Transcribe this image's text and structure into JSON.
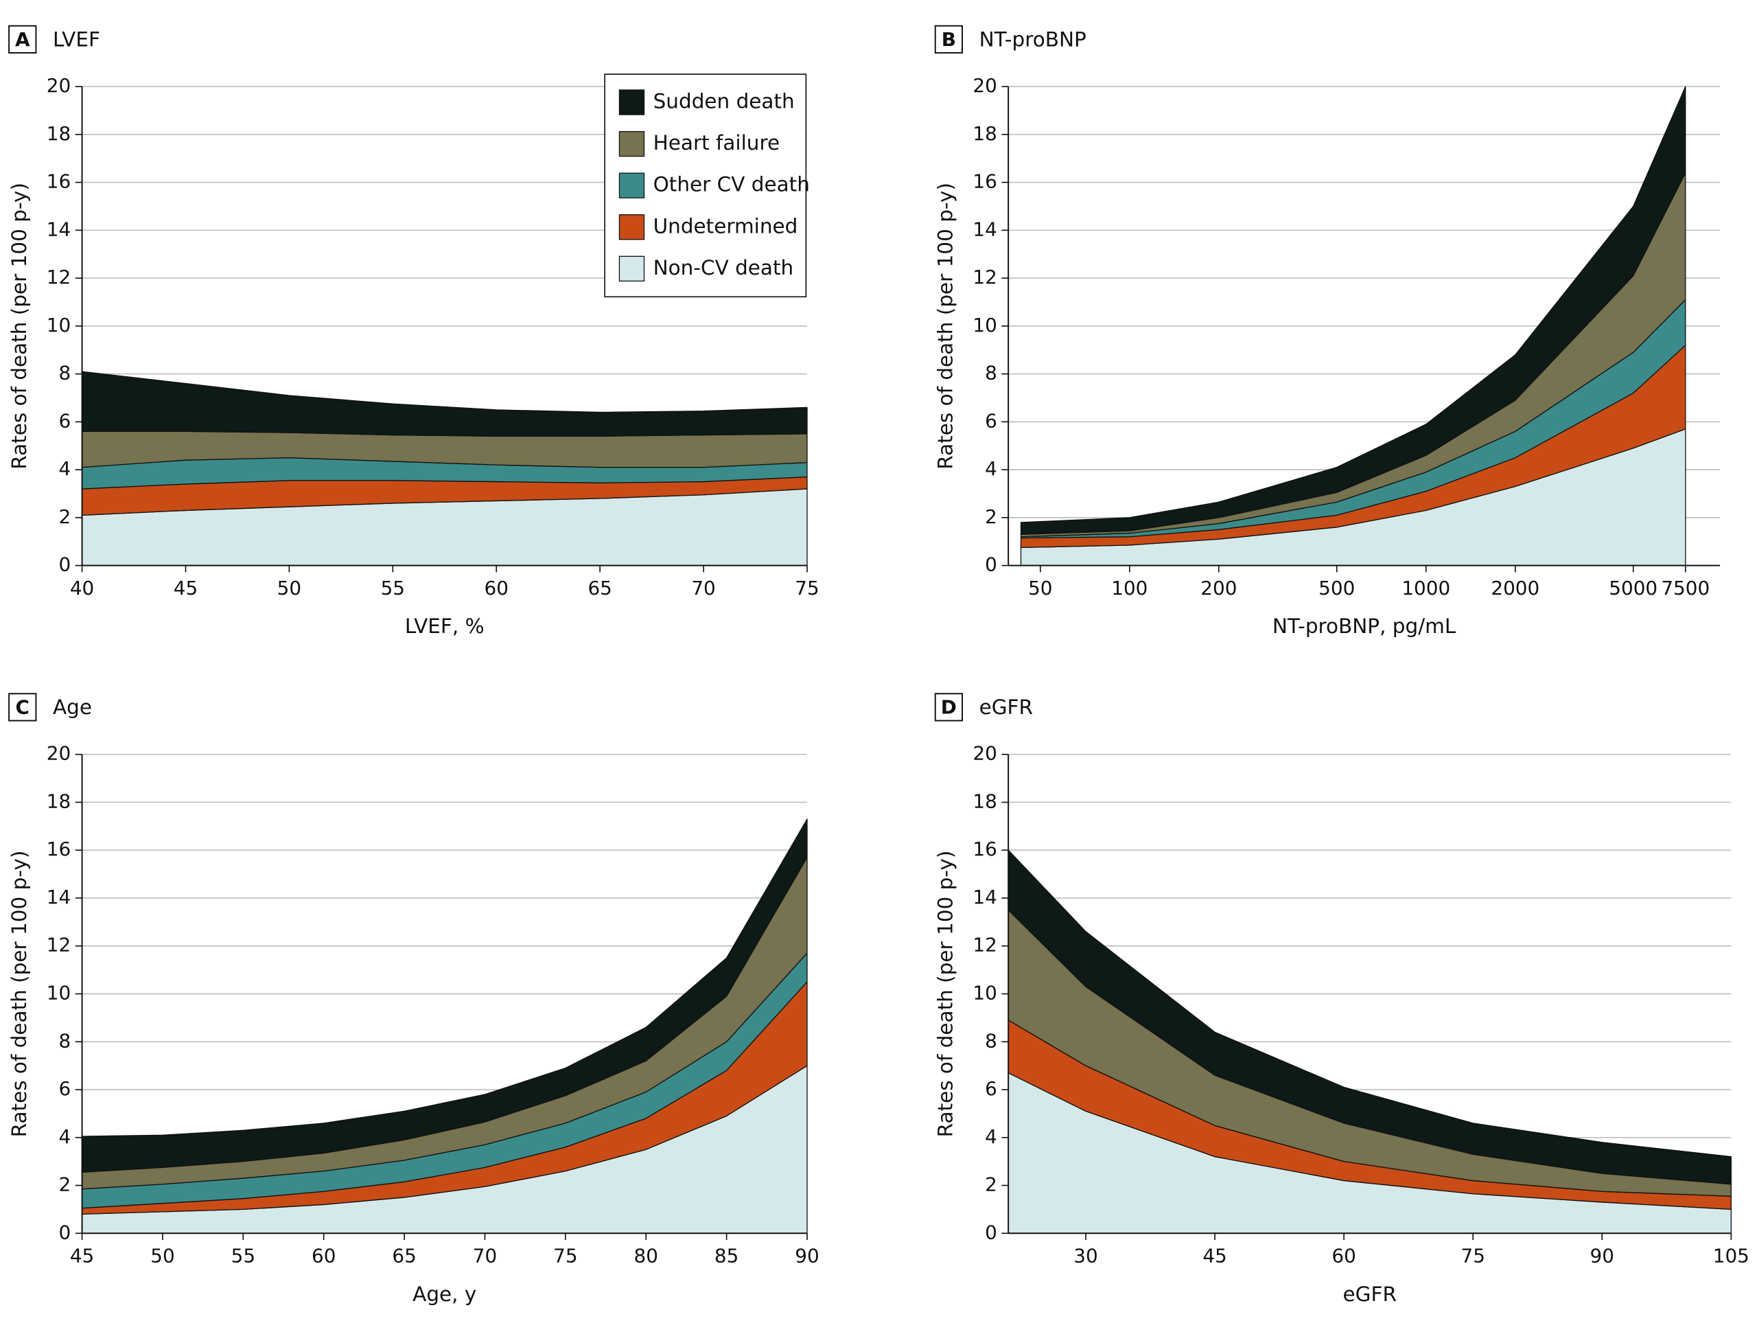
{
  "chart_data": [
    {
      "type": "area",
      "label": "A",
      "title": "LVEF",
      "xlabel": "LVEF, %",
      "ylabel": "Rates of death (per 100 p-y)",
      "x": [
        40,
        45,
        50,
        55,
        60,
        65,
        70,
        75
      ],
      "xlim": [
        40,
        75
      ],
      "xticks": [
        40,
        45,
        50,
        55,
        60,
        65,
        70,
        75
      ],
      "ylim": [
        0,
        20
      ],
      "yticks": [
        0,
        2,
        4,
        6,
        8,
        10,
        12,
        14,
        16,
        18,
        20
      ],
      "grid": true,
      "legend": "top-right",
      "series": [
        {
          "name": "Non-CV death",
          "color": "#d6e9ea",
          "values": [
            2.1,
            2.3,
            2.45,
            2.6,
            2.7,
            2.8,
            2.95,
            3.2
          ]
        },
        {
          "name": "Undetermined",
          "color": "#c94c16",
          "values": [
            1.1,
            1.1,
            1.1,
            0.95,
            0.8,
            0.65,
            0.55,
            0.5
          ]
        },
        {
          "name": "Other CV death",
          "color": "#3b8b8b",
          "values": [
            0.9,
            1.0,
            0.95,
            0.8,
            0.7,
            0.65,
            0.6,
            0.6
          ]
        },
        {
          "name": "Heart failure",
          "color": "#77724f",
          "values": [
            1.5,
            1.2,
            1.05,
            1.1,
            1.2,
            1.3,
            1.35,
            1.2
          ]
        },
        {
          "name": "Sudden death",
          "color": "#0d1a18",
          "values": [
            2.5,
            2.0,
            1.55,
            1.3,
            1.1,
            1.0,
            1.0,
            1.1
          ]
        }
      ]
    },
    {
      "type": "area",
      "label": "B",
      "title": "NT-proBNP",
      "xlabel": "NT-proBNP, pg/mL",
      "ylabel": "Rates of death (per 100 p-y)",
      "x": [
        43,
        100,
        200,
        500,
        1000,
        2000,
        5000,
        7500
      ],
      "xlim": [
        39,
        9800
      ],
      "xscale": "log",
      "xticks": [
        50,
        100,
        200,
        500,
        1000,
        2000,
        5000,
        7500
      ],
      "ylim": [
        0,
        20
      ],
      "yticks": [
        0,
        2,
        4,
        6,
        8,
        10,
        12,
        14,
        16,
        18,
        20
      ],
      "grid": true,
      "series": [
        {
          "name": "Non-CV death",
          "color": "#d6e9ea",
          "values": [
            0.75,
            0.85,
            1.1,
            1.6,
            2.3,
            3.3,
            4.9,
            5.7
          ]
        },
        {
          "name": "Undetermined",
          "color": "#c94c16",
          "values": [
            0.4,
            0.35,
            0.4,
            0.5,
            0.8,
            1.2,
            2.3,
            3.5
          ]
        },
        {
          "name": "Other CV death",
          "color": "#3b8b8b",
          "values": [
            0.05,
            0.15,
            0.25,
            0.55,
            0.8,
            1.1,
            1.7,
            1.9
          ]
        },
        {
          "name": "Heart failure",
          "color": "#77724f",
          "values": [
            0.1,
            0.1,
            0.25,
            0.4,
            0.7,
            1.3,
            3.2,
            5.3
          ]
        },
        {
          "name": "Sudden death",
          "color": "#0d1a18",
          "values": [
            0.5,
            0.55,
            0.65,
            1.05,
            1.3,
            1.9,
            2.9,
            3.6
          ]
        }
      ]
    },
    {
      "type": "area",
      "label": "C",
      "title": "Age",
      "xlabel": "Age, y",
      "ylabel": "Rates of death (per 100 p-y)",
      "x": [
        45,
        50,
        55,
        60,
        65,
        70,
        75,
        80,
        85,
        90
      ],
      "xlim": [
        45,
        90
      ],
      "xticks": [
        45,
        50,
        55,
        60,
        65,
        70,
        75,
        80,
        85,
        90
      ],
      "ylim": [
        0,
        20
      ],
      "yticks": [
        0,
        2,
        4,
        6,
        8,
        10,
        12,
        14,
        16,
        18,
        20
      ],
      "grid": true,
      "series": [
        {
          "name": "Non-CV death",
          "color": "#d6e9ea",
          "values": [
            0.8,
            0.9,
            1.0,
            1.2,
            1.5,
            1.95,
            2.6,
            3.5,
            4.9,
            7.0
          ]
        },
        {
          "name": "Undetermined",
          "color": "#c94c16",
          "values": [
            0.25,
            0.35,
            0.45,
            0.55,
            0.65,
            0.8,
            1.0,
            1.3,
            1.9,
            3.5
          ]
        },
        {
          "name": "Other CV death",
          "color": "#3b8b8b",
          "values": [
            0.8,
            0.8,
            0.85,
            0.85,
            0.9,
            0.95,
            1.0,
            1.1,
            1.2,
            1.2
          ]
        },
        {
          "name": "Heart failure",
          "color": "#77724f",
          "values": [
            0.7,
            0.7,
            0.7,
            0.75,
            0.85,
            0.95,
            1.15,
            1.3,
            1.9,
            4.0
          ]
        },
        {
          "name": "Sudden death",
          "color": "#0d1a18",
          "values": [
            1.5,
            1.35,
            1.3,
            1.25,
            1.2,
            1.15,
            1.15,
            1.4,
            1.6,
            1.6
          ]
        }
      ]
    },
    {
      "type": "area",
      "label": "D",
      "title": "eGFR",
      "xlabel": "eGFR",
      "ylabel": "Rates of death (per 100 p-y)",
      "x": [
        21,
        30,
        45,
        60,
        75,
        90,
        105
      ],
      "xlim": [
        21,
        105
      ],
      "xticks": [
        30,
        45,
        60,
        75,
        90,
        105
      ],
      "ylim": [
        0,
        20
      ],
      "yticks": [
        0,
        2,
        4,
        6,
        8,
        10,
        12,
        14,
        16,
        18,
        20
      ],
      "grid": true,
      "series": [
        {
          "name": "Non-CV death",
          "color": "#d6e9ea",
          "values": [
            6.7,
            5.1,
            3.2,
            2.2,
            1.65,
            1.3,
            1.0
          ]
        },
        {
          "name": "Undetermined",
          "color": "#c94c16",
          "values": [
            2.2,
            1.9,
            1.3,
            0.8,
            0.55,
            0.45,
            0.55
          ]
        },
        {
          "name": "Other CV death",
          "color": "#3b8b8b",
          "values": [
            0,
            0,
            0,
            0,
            0,
            0,
            0
          ]
        },
        {
          "name": "Heart failure",
          "color": "#77724f",
          "values": [
            4.6,
            3.3,
            2.1,
            1.6,
            1.1,
            0.75,
            0.5
          ]
        },
        {
          "name": "Sudden death",
          "color": "#0d1a18",
          "values": [
            2.5,
            2.3,
            1.8,
            1.5,
            1.3,
            1.3,
            1.15
          ]
        }
      ]
    }
  ]
}
